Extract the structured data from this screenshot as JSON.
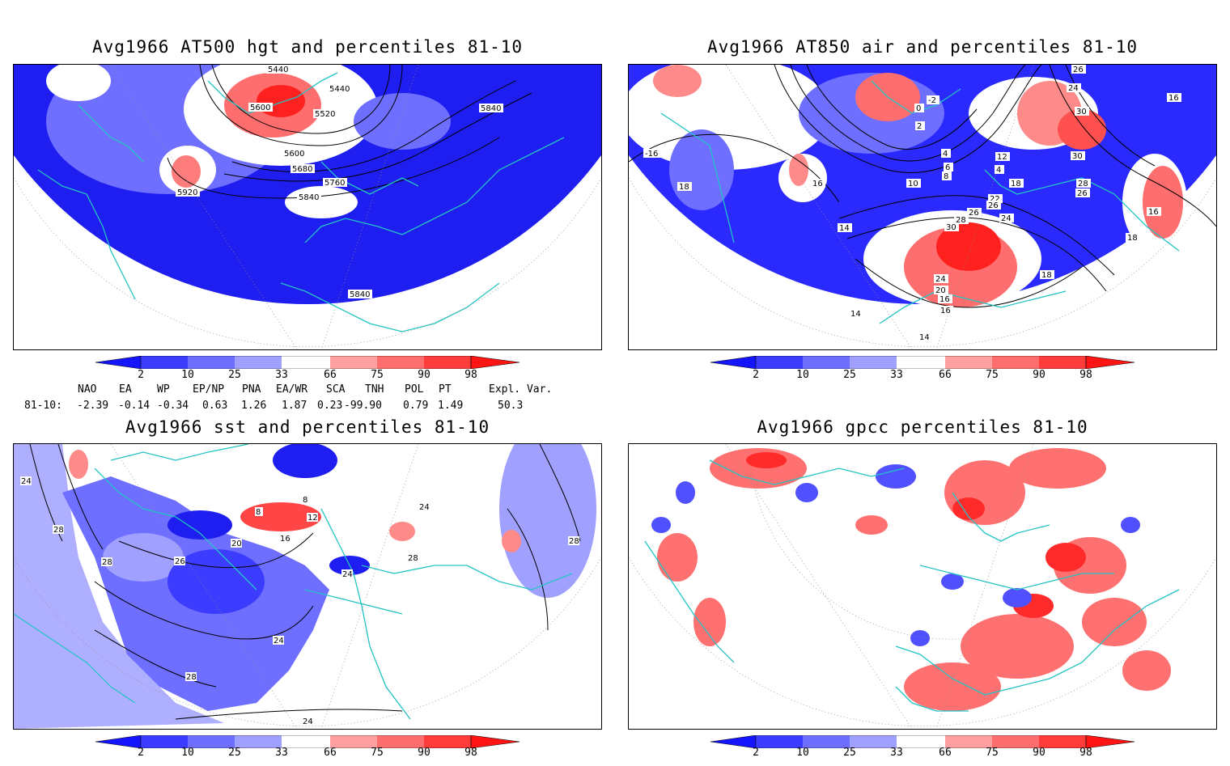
{
  "panels": [
    {
      "title": "Avg1966 AT500 hgt and percentiles 81-10",
      "contour_labels": [
        "5440",
        "5440",
        "5600",
        "5520",
        "5840",
        "5600",
        "5680",
        "5760",
        "5920",
        "5840",
        "5840"
      ]
    },
    {
      "title": "Avg1966 AT850 air and percentiles 81-10",
      "contour_labels": [
        "-2",
        "0",
        "2",
        "4",
        "6",
        "8",
        "10",
        "12",
        "4",
        "16",
        "-16",
        "18",
        "16",
        "18",
        "14",
        "22",
        "28",
        "26",
        "24",
        "30",
        "26",
        "28",
        "26",
        "24",
        "20",
        "16",
        "14",
        "14",
        "18",
        "18",
        "16",
        "16",
        "30",
        "24",
        "30",
        "26",
        "14"
      ]
    },
    {
      "title": "Avg1966 sst and percentiles 81-10",
      "contour_labels": [
        "24",
        "28",
        "28",
        "26",
        "20",
        "16",
        "8",
        "8",
        "12",
        "24",
        "24",
        "28",
        "28",
        "24",
        "28",
        "24"
      ]
    },
    {
      "title": "Avg1966 gpcc percentiles 81-10",
      "contour_labels": []
    }
  ],
  "colorbar": {
    "labels": [
      "2",
      "10",
      "25",
      "33",
      "66",
      "75",
      "90",
      "98"
    ],
    "colors": [
      "#1414ff",
      "#3c3cff",
      "#6e6eff",
      "#a0a0ff",
      "#ffffff",
      "#ffa0a0",
      "#ff6e6e",
      "#ff3c3c",
      "#ff1414"
    ]
  },
  "teleconnections": {
    "headers": [
      "NAO",
      "EA",
      "WP",
      "EP/NP",
      "PNA",
      "EA/WR",
      "SCA",
      "TNH",
      "POL",
      "PT",
      "Expl. Var."
    ],
    "row_label": "81-10:",
    "values": [
      "-2.39",
      "-0.14",
      "-0.34",
      "0.63",
      "1.26",
      "1.87",
      "0.23",
      "-99.90",
      "0.79",
      "1.49",
      "50.3"
    ]
  },
  "colors": {
    "coastline": "#22c4c4",
    "contour": "#000000",
    "grid": "#8a8a8a"
  }
}
